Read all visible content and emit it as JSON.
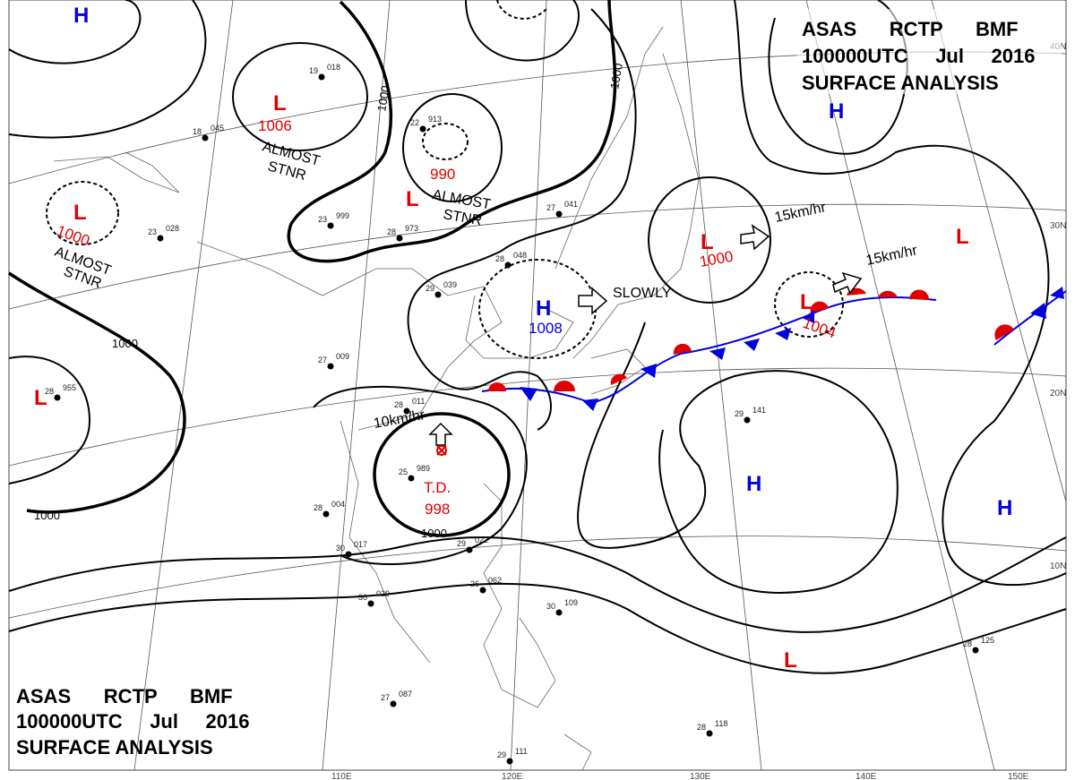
{
  "header": {
    "line1": "ASAS      RCTP      BMF",
    "line2": "100000UTC     Jul     2016",
    "line3": "SURFACE  ANALYSIS"
  },
  "footer": {
    "line1": "ASAS      RCTP      BMF",
    "line2": "100000UTC     Jul     2016",
    "line3": "SURFACE  ANALYSIS"
  },
  "colors": {
    "low": "#e00000",
    "high": "#0000e0",
    "warm_front": "#e00000",
    "cold_front": "#0000e0"
  },
  "systems": {
    "low_1006": {
      "symbol": "L",
      "pressure": "1006",
      "note1": "ALMOST",
      "note2": "STNR"
    },
    "low_990": {
      "symbol": "L",
      "pressure": "990",
      "note1": "ALMOST",
      "note2": "STNR"
    },
    "low_990b": {
      "symbol": "L"
    },
    "low_1000_west": {
      "symbol": "L",
      "pressure": "1000",
      "note1": "ALMOST",
      "note2": "STNR"
    },
    "low_west": {
      "symbol": "L"
    },
    "high_nw": {
      "symbol": "H"
    },
    "high_1008": {
      "symbol": "H",
      "pressure": "1008",
      "motion": "SLOWLY"
    },
    "low_1000_japan": {
      "symbol": "L",
      "pressure": "1000",
      "motion": "15km/hr"
    },
    "low_1004": {
      "symbol": "L",
      "pressure": "1004",
      "motion": "15km/hr"
    },
    "low_ne": {
      "symbol": "L"
    },
    "high_ne": {
      "symbol": "H"
    },
    "td": {
      "label": "T.D.",
      "pressure": "998",
      "motion": "10km/hr"
    },
    "high_pacific_1": {
      "symbol": "H"
    },
    "high_pacific_2": {
      "symbol": "H"
    },
    "low_south": {
      "symbol": "L"
    }
  },
  "isobar_labels": [
    "1000",
    "1000",
    "1000",
    "1000",
    "1000"
  ],
  "latitudes": [
    "40N",
    "30N",
    "20N",
    "10N"
  ],
  "longitudes": [
    "110E",
    "120E",
    "130E",
    "140E",
    "150E"
  ],
  "stations": [
    {
      "t": "19",
      "p": "018"
    },
    {
      "t": "18",
      "p": "045"
    },
    {
      "t": "22",
      "p": "913"
    },
    {
      "t": "23",
      "p": "999"
    },
    {
      "t": "28",
      "p": "973"
    },
    {
      "t": "23",
      "p": "028"
    },
    {
      "t": "27",
      "p": "041"
    },
    {
      "t": "28",
      "p": "048"
    },
    {
      "t": "29",
      "p": "039"
    },
    {
      "t": "27",
      "p": "009"
    },
    {
      "t": "28",
      "p": "011"
    },
    {
      "t": "25",
      "p": "989"
    },
    {
      "t": "28",
      "p": "004"
    },
    {
      "t": "30",
      "p": "017"
    },
    {
      "t": "29",
      "p": "022"
    },
    {
      "t": "30",
      "p": "029"
    },
    {
      "t": "26",
      "p": "062"
    },
    {
      "t": "30",
      "p": "109"
    },
    {
      "t": "28",
      "p": "955"
    },
    {
      "t": "29",
      "p": "141"
    },
    {
      "t": "28",
      "p": "125"
    },
    {
      "t": "28",
      "p": "118"
    },
    {
      "t": "27",
      "p": "087"
    },
    {
      "t": "29",
      "p": "111"
    }
  ]
}
